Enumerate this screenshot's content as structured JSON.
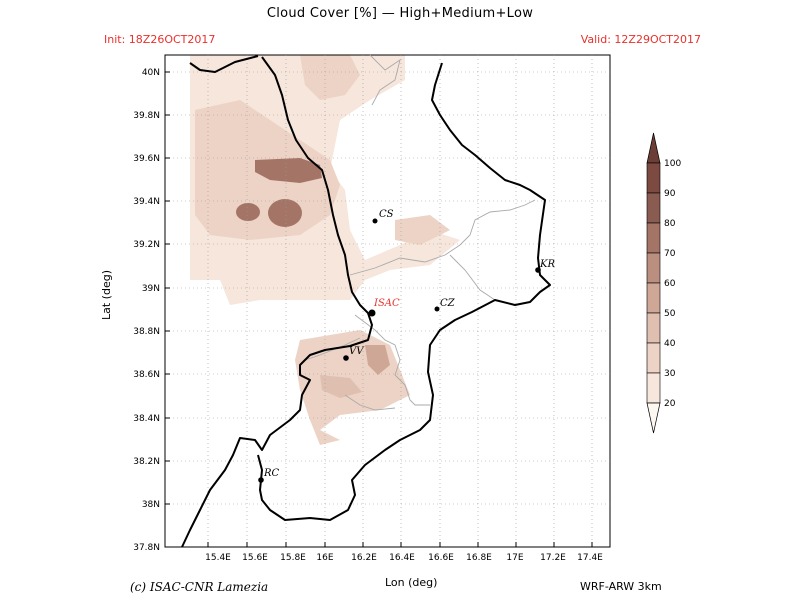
{
  "header": {
    "title": "Cloud Cover [%] — High+Medium+Low",
    "init": "Init: 18Z26OCT2017",
    "valid": "Valid: 12Z29OCT2017"
  },
  "axes": {
    "xlabel": "Lon (deg)",
    "ylabel": "Lat (deg)",
    "lon_ticks": [
      "15.4E",
      "15.6E",
      "15.8E",
      "16E",
      "16.2E",
      "16.4E",
      "16.6E",
      "16.8E",
      "17E",
      "17.2E",
      "17.4E"
    ],
    "lat_ticks": [
      "37.8N",
      "38N",
      "38.2N",
      "38.4N",
      "38.6N",
      "38.8N",
      "39N",
      "39.2N",
      "39.4N",
      "39.6N",
      "39.8N",
      "40N"
    ],
    "grid": "dotted"
  },
  "cities": [
    {
      "code": "CS",
      "color": "#000000"
    },
    {
      "code": "KR",
      "color": "#000000"
    },
    {
      "code": "ISAC",
      "color": "#e8312c"
    },
    {
      "code": "CZ",
      "color": "#000000"
    },
    {
      "code": "VV",
      "color": "#000000"
    },
    {
      "code": "RC",
      "color": "#000000"
    }
  ],
  "colorbar": {
    "levels": [
      "20",
      "30",
      "40",
      "50",
      "60",
      "70",
      "80",
      "90",
      "100"
    ],
    "colors": [
      "#fdf7f2",
      "#f6e6dc",
      "#ecd3c5",
      "#dfbfb0",
      "#cfa796",
      "#bb8f80",
      "#a47567",
      "#8a5c51",
      "#6b3f36"
    ]
  },
  "footer": {
    "credit": "(c) ISAC-CNR Lamezia",
    "model": "WRF-ARW 3km"
  }
}
